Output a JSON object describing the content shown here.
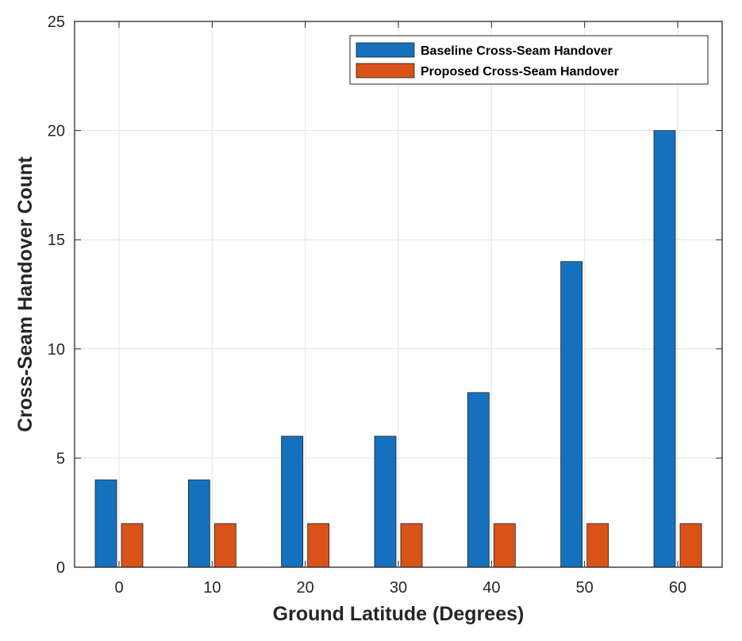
{
  "chart_data": {
    "type": "bar",
    "title": "",
    "xlabel": "Ground Latitude (Degrees)",
    "ylabel": "Cross-Seam Handover Count",
    "categories": [
      "0",
      "10",
      "20",
      "30",
      "40",
      "50",
      "60"
    ],
    "ylim": [
      0,
      25
    ],
    "yticks": [
      "0",
      "5",
      "10",
      "15",
      "20",
      "25"
    ],
    "grid": true,
    "legend_position": "top-right",
    "series": [
      {
        "name": "Baseline Cross-Seam Handover",
        "color": "#1571BE",
        "values": [
          4,
          4,
          6,
          6,
          8,
          14,
          20
        ]
      },
      {
        "name": "Proposed Cross-Seam Handover",
        "color": "#D95319",
        "values": [
          2,
          2,
          2,
          2,
          2,
          2,
          2
        ]
      }
    ]
  }
}
